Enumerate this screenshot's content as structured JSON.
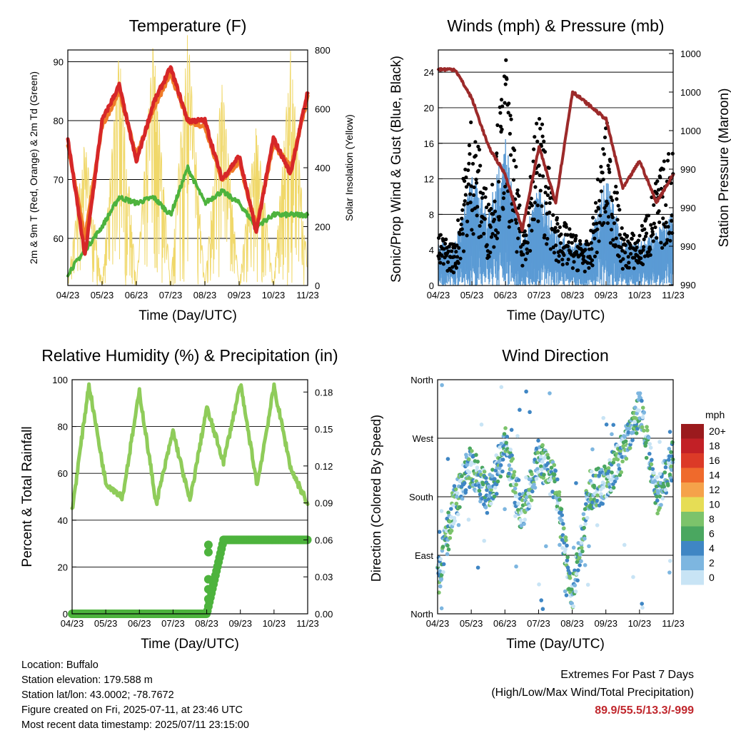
{
  "ticks_x": [
    "04/23",
    "05/23",
    "06/23",
    "07/23",
    "08/23",
    "09/23",
    "10/23",
    "11/23"
  ],
  "temperature": {
    "title": "Temperature (F)",
    "ylabel": "2m & 9m T (Red, Orange) & 2m Td (Green)",
    "ylabel_right": "Solar Insolation (Yellow)",
    "xlabel": "Time (Day/UTC)",
    "yticks": [
      "60",
      "70",
      "80",
      "90"
    ],
    "yticks_right": [
      "0",
      "200",
      "400",
      "600",
      "800"
    ]
  },
  "winds": {
    "title": "Winds (mph) & Pressure (mb)",
    "ylabel": "Sonic/Prop Wind & Gust (Blue, Black)",
    "ylabel_right": "Station Pressure (Maroon)",
    "xlabel": "Time (Day/UTC)",
    "yticks": [
      "0",
      "4",
      "8",
      "12",
      "16",
      "20",
      "24"
    ],
    "yticks_right": [
      "990",
      "990",
      "990",
      "990",
      "1000",
      "1000",
      "1000"
    ]
  },
  "humidity": {
    "title": "Relative Humidity (%) & Precipitation (in)",
    "ylabel": "Percent & Total Rainfall",
    "xlabel": "Time (Day/UTC)",
    "yticks": [
      "0",
      "20",
      "40",
      "60",
      "80",
      "100"
    ],
    "yticks_right": [
      "0.00",
      "0.03",
      "0.06",
      "0.09",
      "0.12",
      "0.15",
      "0.18"
    ]
  },
  "direction": {
    "title": "Wind Direction",
    "ylabel": "Direction (Colored By Speed)",
    "xlabel": "Time (Day/UTC)",
    "yticks": [
      "North",
      "East",
      "South",
      "West",
      "North"
    ],
    "legend_title": "mph",
    "legend_labels": [
      "20+",
      "18",
      "16",
      "14",
      "12",
      "10",
      "8",
      "6",
      "4",
      "2",
      "0"
    ],
    "legend_colors": [
      "#9b1a1d",
      "#c22026",
      "#dc3a27",
      "#ef6a2c",
      "#f5a24a",
      "#e6dd55",
      "#7cc36b",
      "#4aa760",
      "#3f86c4",
      "#7db6e0",
      "#c8e4f5"
    ]
  },
  "info": {
    "location": "Location: Buffalo",
    "elevation": "Station elevation: 179.588 m",
    "latlon": "Station lat/lon: 43.0002; -78.7672",
    "created": "Figure created on Fri, 2025-07-11, at 23:46 UTC",
    "recent": "Most recent data timestamp: 2025/07/11 23:15:00"
  },
  "extremes": {
    "line1": "Extremes For Past 7 Days",
    "line2": "(High/Low/Max Wind/Total Precipitation)",
    "values": "89.9/55.5/13.3/-999"
  },
  "chart_data": [
    {
      "type": "line",
      "title": "Temperature (F)",
      "x": [
        0,
        0.5,
        1,
        1.5,
        2,
        2.5,
        3,
        3.5,
        4,
        4.5,
        5,
        5.5,
        6,
        6.5,
        7
      ],
      "ylim": [
        52,
        92
      ],
      "y2lim": [
        0,
        800
      ],
      "series": [
        {
          "name": "2m T",
          "color": "#d62728",
          "values": [
            77,
            57,
            80,
            86,
            73,
            83,
            89,
            80,
            80,
            70,
            74,
            61,
            77,
            71,
            85
          ]
        },
        {
          "name": "9m T",
          "color": "#f07c28",
          "values": [
            76,
            60,
            79,
            85,
            74,
            82,
            88,
            80,
            79,
            70,
            73,
            62,
            76,
            72,
            84
          ]
        },
        {
          "name": "2m Td",
          "color": "#4db33d",
          "values": [
            54,
            58,
            62,
            67,
            66,
            67,
            64,
            72,
            66,
            68,
            66,
            62,
            64,
            64,
            64
          ]
        },
        {
          "name": "Solar Insolation",
          "color": "#f0d86a",
          "values": [
            0,
            500,
            0,
            800,
            0,
            840,
            0,
            870,
            0,
            700,
            0,
            560,
            0,
            800,
            60
          ]
        }
      ]
    },
    {
      "type": "line",
      "title": "Winds (mph) & Pressure (mb)",
      "x": [
        0,
        0.5,
        1,
        1.5,
        2,
        2.5,
        3,
        3.5,
        4,
        4.5,
        5,
        5.5,
        6,
        6.5,
        7
      ],
      "ylim": [
        0,
        26.5
      ],
      "series": [
        {
          "name": "Sonic/Prop Wind",
          "color": "#5b9bd5",
          "values": [
            3,
            3,
            9,
            6,
            12,
            3,
            8,
            4,
            3,
            3,
            9,
            3,
            3,
            4,
            6
          ]
        },
        {
          "name": "Gust",
          "color": "#000000",
          "values": [
            5,
            4,
            17,
            8,
            22,
            5,
            18,
            7,
            5,
            4,
            16,
            5,
            5,
            10,
            14
          ]
        },
        {
          "name": "Station Pressure",
          "color": "#9c2a2a",
          "values": [
            1000.6,
            1000.6,
            998.5,
            995,
            993,
            989,
            995,
            991,
            999,
            998,
            997,
            992,
            994,
            991,
            993
          ]
        }
      ]
    },
    {
      "type": "line",
      "title": "Relative Humidity (%) & Precipitation (in)",
      "x": [
        0,
        0.5,
        1,
        1.5,
        2,
        2.5,
        3,
        3.5,
        4,
        4.5,
        5,
        5.5,
        6,
        6.5,
        7
      ],
      "ylim": [
        0,
        100
      ],
      "y2lim": [
        0,
        0.19
      ],
      "series": [
        {
          "name": "Relative Humidity",
          "color": "#8fcc5a",
          "values": [
            44,
            98,
            56,
            50,
            95,
            47,
            78,
            48,
            88,
            65,
            98,
            55,
            97,
            62,
            47
          ]
        },
        {
          "name": "Precipitation",
          "color": "#4db33d",
          "values": [
            0,
            0,
            0,
            0,
            0,
            0,
            0,
            0,
            0,
            0.06,
            0.06,
            0.06,
            0.06,
            0.06,
            0.06
          ]
        }
      ]
    },
    {
      "type": "scatter",
      "title": "Wind Direction",
      "x": [
        0,
        0.5,
        1,
        1.5,
        2,
        2.5,
        3,
        3.5,
        4,
        4.5,
        5,
        5.5,
        6,
        6.5,
        7
      ],
      "y": [
        50,
        170,
        230,
        180,
        260,
        150,
        240,
        200,
        20,
        190,
        200,
        250,
        320,
        180,
        240
      ]
    }
  ]
}
